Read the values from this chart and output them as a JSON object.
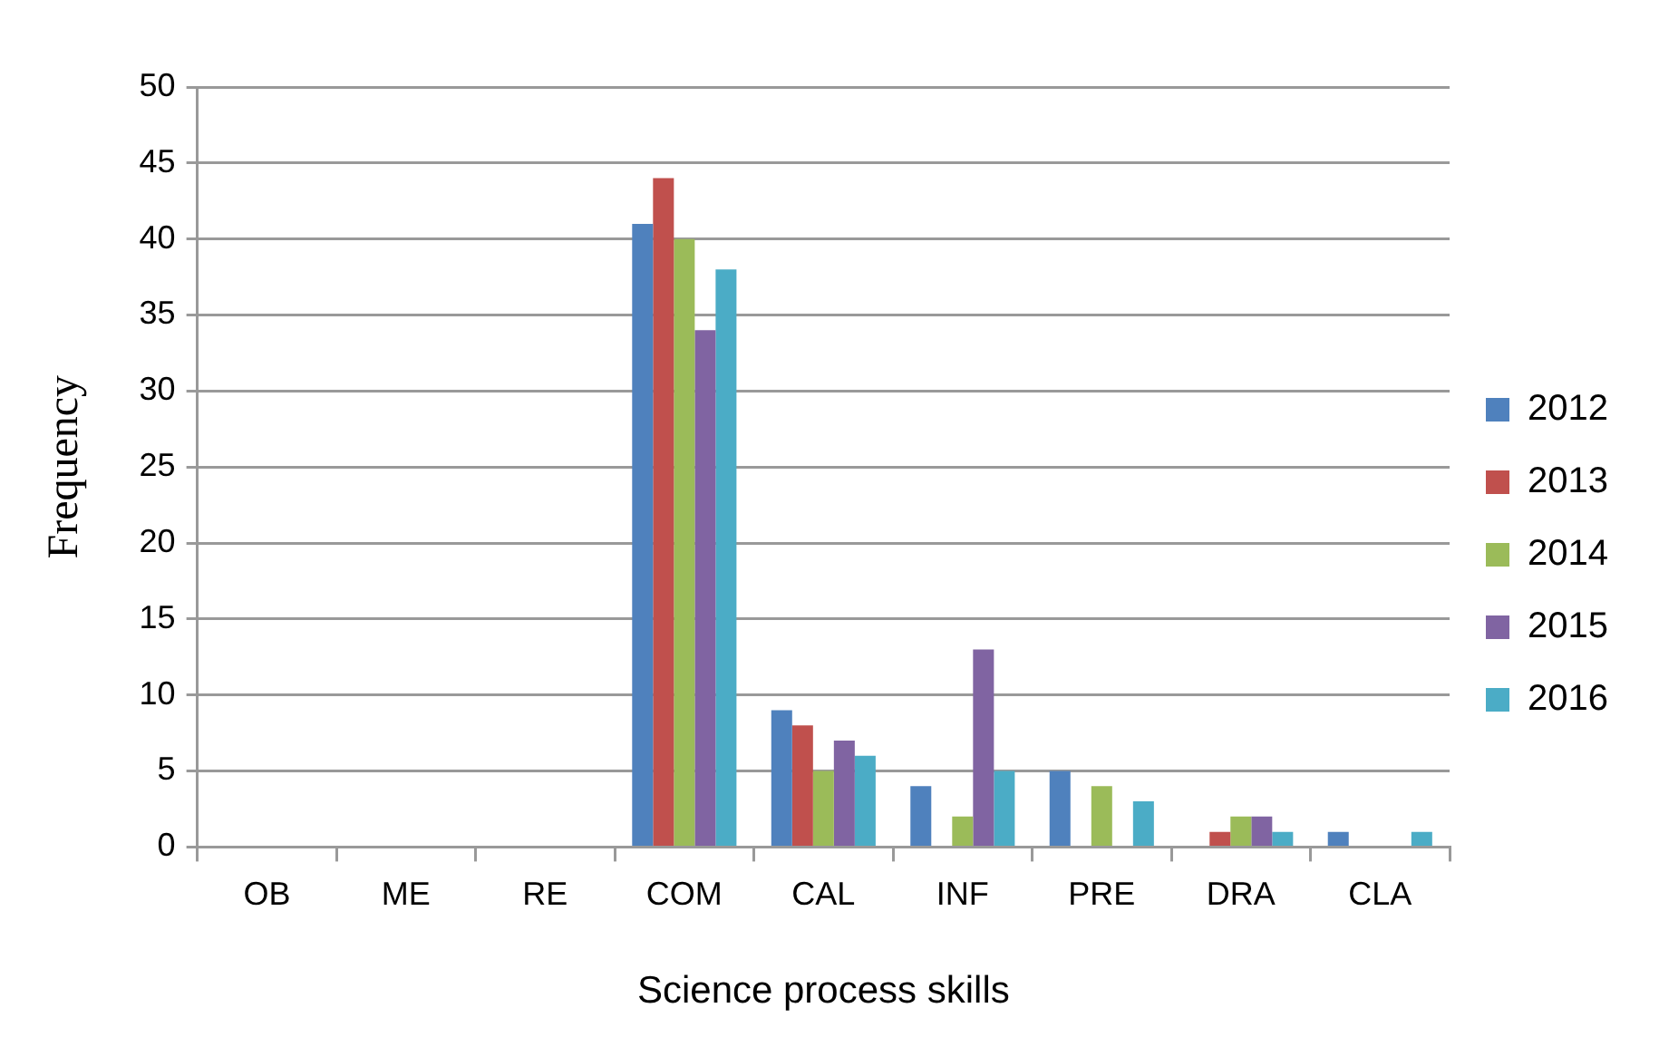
{
  "chart_data": {
    "type": "bar",
    "xlabel": "Science process skills",
    "ylabel": "Frequency",
    "categories": [
      "OB",
      "ME",
      "RE",
      "COM",
      "CAL",
      "INF",
      "PRE",
      "DRA",
      "CLA"
    ],
    "series": [
      {
        "name": "2012",
        "color": "#4f81bd",
        "values": [
          0,
          0,
          0,
          41,
          9,
          4,
          5,
          0,
          1
        ]
      },
      {
        "name": "2013",
        "color": "#c0504d",
        "values": [
          0,
          0,
          0,
          44,
          8,
          0,
          0,
          1,
          0
        ]
      },
      {
        "name": "2014",
        "color": "#9bbb59",
        "values": [
          0,
          0,
          0,
          40,
          5,
          2,
          4,
          2,
          0
        ]
      },
      {
        "name": "2015",
        "color": "#8064a2",
        "values": [
          0,
          0,
          0,
          34,
          7,
          13,
          0,
          2,
          0
        ]
      },
      {
        "name": "2016",
        "color": "#4bacc6",
        "values": [
          0,
          0,
          0,
          38,
          6,
          5,
          3,
          1,
          1
        ]
      }
    ],
    "ylim": [
      0,
      50
    ],
    "yticks": [
      0,
      5,
      10,
      15,
      20,
      25,
      30,
      35,
      40,
      45,
      50
    ],
    "grid": "y",
    "legend": "right"
  }
}
